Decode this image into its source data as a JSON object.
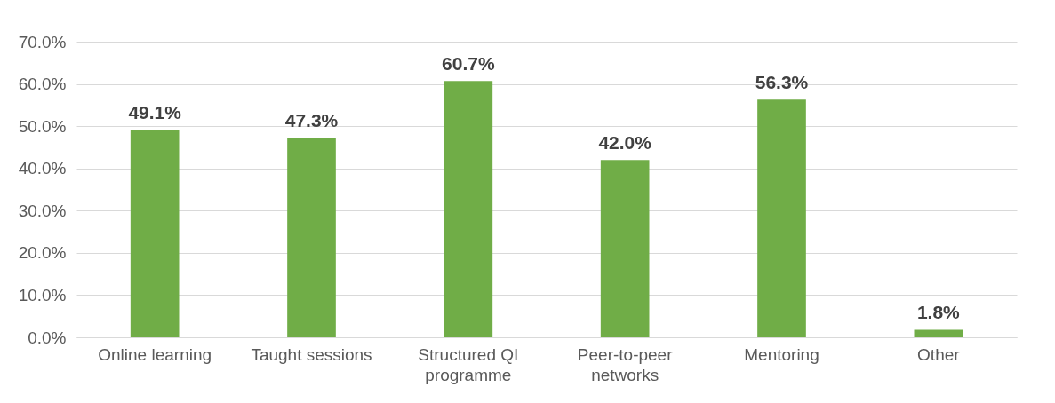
{
  "chart_data": {
    "type": "bar",
    "categories": [
      "Online learning",
      "Taught sessions",
      "Structured QI programme",
      "Peer-to-peer networks",
      "Mentoring",
      "Other"
    ],
    "values": [
      49.1,
      47.3,
      60.7,
      42.0,
      56.3,
      1.8
    ],
    "value_labels": [
      "49.1%",
      "47.3%",
      "60.7%",
      "42.0%",
      "56.3%",
      "1.8%"
    ],
    "color": "#70ad47",
    "ylim": [
      0,
      70
    ],
    "yticks": [
      {
        "value": 0,
        "label": "0.0%"
      },
      {
        "value": 10,
        "label": "10.0%"
      },
      {
        "value": 20,
        "label": "20.0%"
      },
      {
        "value": 30,
        "label": "30.0%"
      },
      {
        "value": 40,
        "label": "40.0%"
      },
      {
        "value": 50,
        "label": "50.0%"
      },
      {
        "value": 60,
        "label": "60.0%"
      },
      {
        "value": 70,
        "label": "70.0%"
      }
    ],
    "grid": "y"
  }
}
